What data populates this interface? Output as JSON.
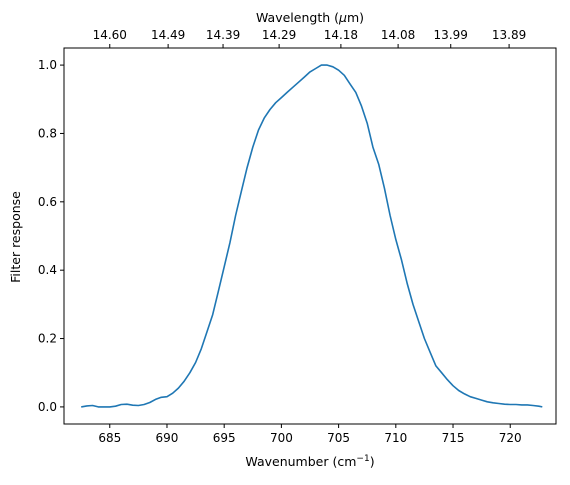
{
  "chart_data": {
    "type": "line",
    "xlabel": "Wavenumber (cm",
    "xlabel_sup": "−1",
    "xlabel_tail": ")",
    "ylabel": "Filter response",
    "top_xlabel": "Wavelength (",
    "top_xlabel_mu": "μ",
    "top_xlabel_tail": "m)",
    "xlim": [
      681.0,
      724.0
    ],
    "ylim": [
      -0.05,
      1.05
    ],
    "x_ticks": [
      685,
      690,
      695,
      700,
      705,
      710,
      715,
      720
    ],
    "y_ticks": [
      0.0,
      0.2,
      0.4,
      0.6,
      0.8,
      1.0
    ],
    "y_tick_labels": [
      "0.0",
      "0.2",
      "0.4",
      "0.6",
      "0.8",
      "1.0"
    ],
    "top_ticks": [
      {
        "wavenumber": 685.0,
        "label": "14.60"
      },
      {
        "wavenumber": 690.1,
        "label": "14.49"
      },
      {
        "wavenumber": 694.9,
        "label": "14.39"
      },
      {
        "wavenumber": 699.8,
        "label": "14.29"
      },
      {
        "wavenumber": 705.2,
        "label": "14.18"
      },
      {
        "wavenumber": 710.2,
        "label": "14.08"
      },
      {
        "wavenumber": 714.8,
        "label": "13.99"
      },
      {
        "wavenumber": 719.9,
        "label": "13.89"
      }
    ],
    "grid": false,
    "series": [
      {
        "color": "#1f77b4",
        "x": [
          682.5,
          683.0,
          683.5,
          684.0,
          684.5,
          685.0,
          685.5,
          686.0,
          686.5,
          687.0,
          687.5,
          688.0,
          688.5,
          689.0,
          689.5,
          690.0,
          690.5,
          691.0,
          691.5,
          692.0,
          692.5,
          693.0,
          693.5,
          694.0,
          694.5,
          695.0,
          695.5,
          696.0,
          696.5,
          697.0,
          697.5,
          698.0,
          698.5,
          699.0,
          699.5,
          700.0,
          700.5,
          701.0,
          701.5,
          702.0,
          702.5,
          703.0,
          703.5,
          704.0,
          704.5,
          705.0,
          705.5,
          706.0,
          706.5,
          707.0,
          707.5,
          708.0,
          708.5,
          709.0,
          709.5,
          710.0,
          710.5,
          711.0,
          711.5,
          712.0,
          712.5,
          713.0,
          713.5,
          714.0,
          714.5,
          715.0,
          715.5,
          716.0,
          716.5,
          717.0,
          717.5,
          718.0,
          718.5,
          719.0,
          719.5,
          720.0,
          720.5,
          721.0,
          721.5,
          722.0,
          722.5,
          722.8
        ],
        "y": [
          0.0,
          0.003,
          0.004,
          0.0,
          0.0,
          0.0,
          0.002,
          0.007,
          0.008,
          0.005,
          0.004,
          0.007,
          0.013,
          0.022,
          0.028,
          0.03,
          0.04,
          0.055,
          0.075,
          0.1,
          0.13,
          0.17,
          0.22,
          0.27,
          0.34,
          0.41,
          0.48,
          0.56,
          0.63,
          0.7,
          0.76,
          0.81,
          0.845,
          0.87,
          0.89,
          0.905,
          0.92,
          0.935,
          0.95,
          0.965,
          0.98,
          0.99,
          1.0,
          1.0,
          0.995,
          0.985,
          0.97,
          0.945,
          0.92,
          0.88,
          0.83,
          0.76,
          0.71,
          0.64,
          0.56,
          0.49,
          0.43,
          0.36,
          0.3,
          0.25,
          0.2,
          0.16,
          0.12,
          0.1,
          0.08,
          0.062,
          0.048,
          0.038,
          0.03,
          0.025,
          0.02,
          0.015,
          0.012,
          0.01,
          0.008,
          0.007,
          0.007,
          0.006,
          0.006,
          0.004,
          0.002,
          0.0
        ]
      }
    ]
  }
}
